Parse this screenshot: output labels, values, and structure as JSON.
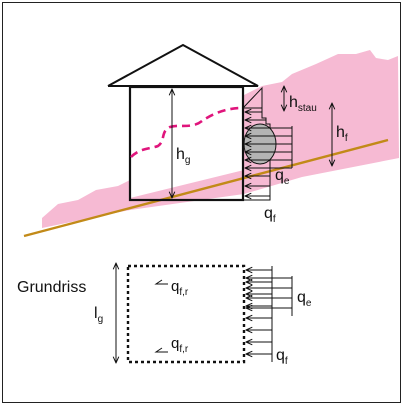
{
  "section": {
    "h_stau": "h",
    "h_stau_sub": "stau",
    "h_g": "h",
    "h_g_sub": "g",
    "h_f": "h",
    "h_f_sub": "f",
    "q_e": "q",
    "q_e_sub": "e",
    "q_f": "q",
    "q_f_sub": "f"
  },
  "plan": {
    "title": "Grundriss",
    "l_g": "l",
    "l_g_sub": "g",
    "q_fr_top": "q",
    "q_fr_top_sub": "f,r",
    "q_fr_bottom": "q",
    "q_fr_bottom_sub": "f,r",
    "q_e": "q",
    "q_e_sub": "e",
    "q_f": "q",
    "q_f_sub": "f"
  },
  "colors": {
    "debris_fill": "#f6bad3",
    "ground_line": "#c28a18",
    "flow_line": "#e0157c",
    "impact_fill": "#b4b4b4",
    "line": "#111111"
  }
}
